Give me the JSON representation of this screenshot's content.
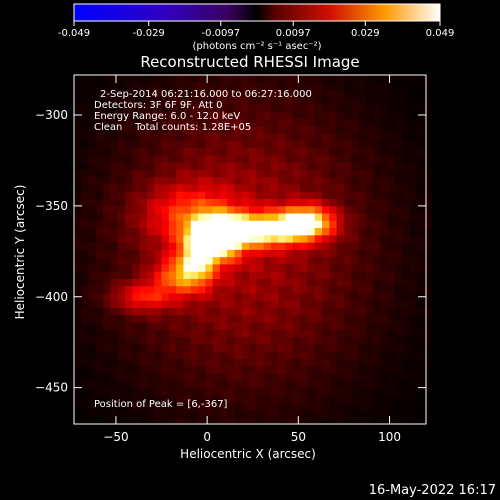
{
  "colorbar": {
    "ticks": [
      "-0.049",
      "-0.029",
      "-0.0097",
      "0.0097",
      "0.029",
      "0.049"
    ],
    "tick_values": [
      -0.049,
      -0.029,
      -0.0097,
      0.0097,
      0.029,
      0.049
    ],
    "range": [
      -0.049,
      0.049
    ],
    "units": "(photons cm⁻² s⁻¹ asec⁻²)"
  },
  "info": {
    "line1": "2-Sep-2014 06:21:16.000 to 06:27:16.000",
    "line2": "Detectors: 3F 6F 9F, Att 0",
    "line3": "Energy Range: 6.0 - 12.0 keV",
    "line4": "Clean    Total counts: 1.28E+05",
    "peak": "Position of Peak = [6,-367]"
  },
  "footer": {
    "timestamp": "16-May-2022 16:17"
  },
  "chart_data": {
    "type": "heatmap",
    "title": "Reconstructed RHESSI Image",
    "xlabel": "Heliocentric X (arcsec)",
    "ylabel": "Heliocentric Y (arcsec)",
    "xlim": [
      -73,
      120
    ],
    "ylim": [
      -470,
      -278
    ],
    "xticks": [
      -50,
      0,
      50,
      100
    ],
    "yticks": [
      -300,
      -350,
      -400,
      -450
    ],
    "colormap": "red-temperature",
    "sources": [
      {
        "x": 6,
        "y": -367,
        "amp": 1.0,
        "sx": 9,
        "sy": 8
      },
      {
        "x": 32,
        "y": -363,
        "amp": 0.85,
        "sx": 18,
        "sy": 6
      },
      {
        "x": 55,
        "y": -358,
        "amp": 0.7,
        "sx": 10,
        "sy": 6
      },
      {
        "x": -5,
        "y": -378,
        "amp": 0.55,
        "sx": 7,
        "sy": 10
      },
      {
        "x": -15,
        "y": -388,
        "amp": 0.45,
        "sx": 10,
        "sy": 7
      },
      {
        "x": -35,
        "y": -400,
        "amp": 0.35,
        "sx": 12,
        "sy": 6
      },
      {
        "x": -10,
        "y": -355,
        "amp": 0.35,
        "sx": 18,
        "sy": 12
      }
    ],
    "background_level": 0.3,
    "peak": [
      6,
      -367
    ]
  }
}
